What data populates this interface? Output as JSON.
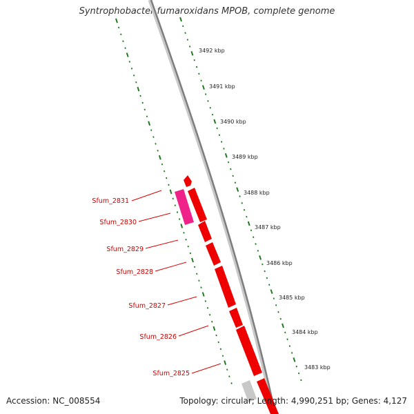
{
  "title": "Syntrophobacter fumaroxidans MPOB, complete genome",
  "footer": {
    "accession": "Accession: NC_008554",
    "summary": "Topology: circular; Length: 4,990,251 bp; Genes: 4,127"
  },
  "scale_labels": [
    "3492 kbp",
    "3491 kbp",
    "3490 kbp",
    "3489 kbp",
    "3488 kbp",
    "3487 kbp",
    "3486 kbp",
    "3485 kbp",
    "3484 kbp",
    "3483 kbp"
  ],
  "gene_labels": [
    "Sfum_2831",
    "Sfum_2830",
    "Sfum_2829",
    "Sfum_2828",
    "Sfum_2827",
    "Sfum_2826",
    "Sfum_2825"
  ],
  "colors": {
    "backbone": "#8a8a8a",
    "gene_cds": "#ee0000",
    "gene_other": "#ee2288",
    "gene_grey": "#c8c8c8",
    "ruler": "#1f7a1f",
    "label": "#cc0000"
  }
}
